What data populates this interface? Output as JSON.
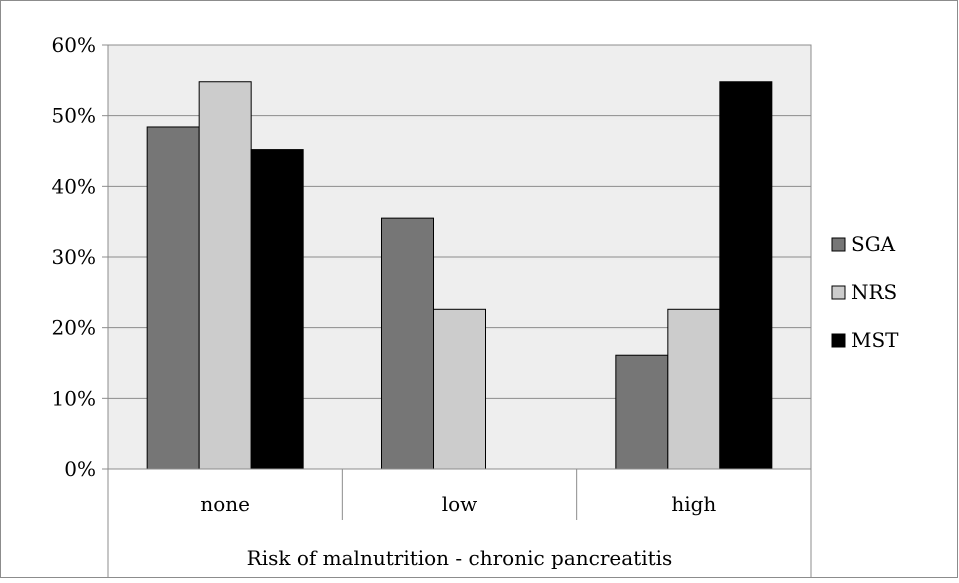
{
  "chart_data": {
    "type": "bar",
    "categories": [
      "none",
      "low",
      "high"
    ],
    "group_label": "Risk of malnutrition - chronic pancreatitis",
    "series": [
      {
        "name": "SGA",
        "color": "#767676",
        "values": [
          48.4,
          35.5,
          16.1
        ]
      },
      {
        "name": "NRS",
        "color": "#cccccc",
        "values": [
          54.8,
          22.6,
          22.6
        ]
      },
      {
        "name": "MST",
        "color": "#000000",
        "values": [
          45.2,
          0,
          54.8
        ]
      }
    ],
    "yticks": [
      "0%",
      "10%",
      "20%",
      "30%",
      "40%",
      "50%",
      "60%"
    ],
    "ylim": [
      0,
      60
    ],
    "grid": true,
    "plot_background": "#eeeeee",
    "legend_position": "right"
  }
}
